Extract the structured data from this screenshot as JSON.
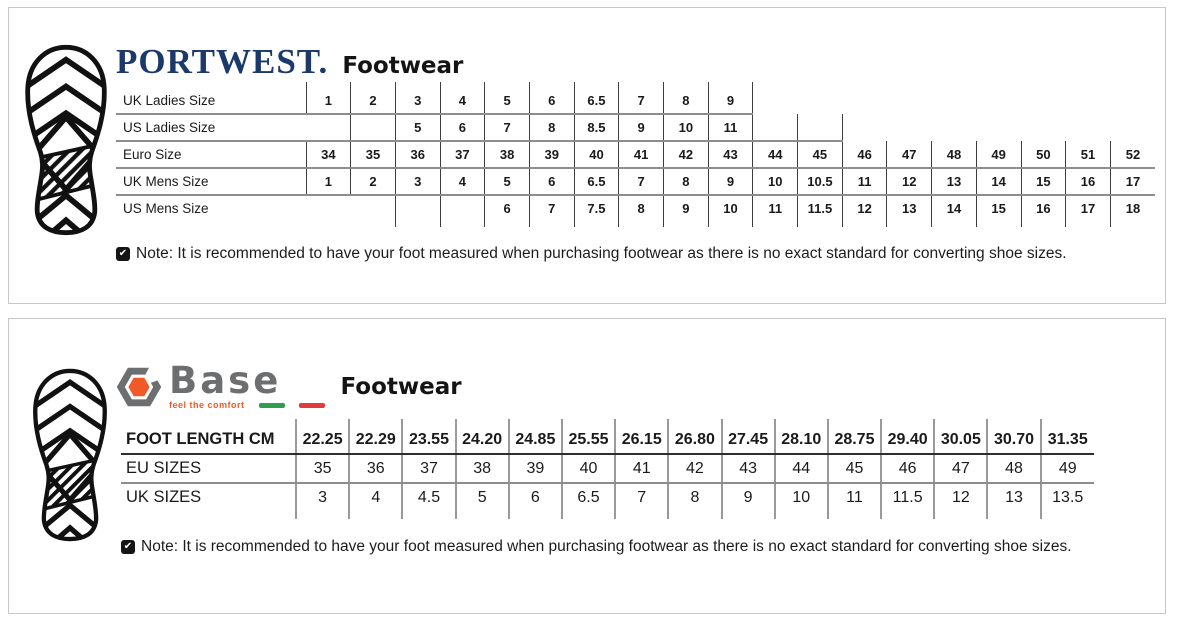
{
  "note": "Note: It is recommended to have your foot measured when purchasing footwear as there is no exact standard for converting shoe sizes.",
  "portwest": {
    "brand": "PORTWEST.",
    "title": "Footwear",
    "rows": [
      {
        "label": "UK Ladies Size",
        "values": [
          "1",
          "2",
          "3",
          "4",
          "5",
          "6",
          "6.5",
          "7",
          "8",
          "9",
          "",
          "",
          "",
          "",
          "",
          "",
          "",
          "",
          ""
        ]
      },
      {
        "label": "US Ladies Size",
        "values": [
          "",
          "",
          "5",
          "6",
          "7",
          "8",
          "8.5",
          "9",
          "10",
          "11",
          "",
          "",
          "",
          "",
          "",
          "",
          "",
          "",
          ""
        ]
      },
      {
        "label": "Euro Size",
        "values": [
          "34",
          "35",
          "36",
          "37",
          "38",
          "39",
          "40",
          "41",
          "42",
          "43",
          "44",
          "45",
          "46",
          "47",
          "48",
          "49",
          "50",
          "51",
          "52"
        ]
      },
      {
        "label": "UK Mens Size",
        "values": [
          "1",
          "2",
          "3",
          "4",
          "5",
          "6",
          "6.5",
          "7",
          "8",
          "9",
          "10",
          "10.5",
          "11",
          "12",
          "13",
          "14",
          "15",
          "16",
          "17"
        ]
      },
      {
        "label": "US Mens Size",
        "values": [
          "",
          "",
          "",
          "",
          "6",
          "7",
          "7.5",
          "8",
          "9",
          "10",
          "11",
          "11.5",
          "12",
          "13",
          "14",
          "15",
          "16",
          "17",
          "18"
        ]
      }
    ]
  },
  "base": {
    "brand": "Base",
    "tagline": "feel the comfort",
    "title": "Footwear",
    "rows": [
      {
        "label": "FOOT LENGTH CM",
        "values": [
          "22.25",
          "22.29",
          "23.55",
          "24.20",
          "24.85",
          "25.55",
          "26.15",
          "26.80",
          "27.45",
          "28.10",
          "28.75",
          "29.40",
          "30.05",
          "30.70",
          "31.35"
        ]
      },
      {
        "label": "EU SIZES",
        "values": [
          "35",
          "36",
          "37",
          "38",
          "39",
          "40",
          "41",
          "42",
          "43",
          "44",
          "45",
          "46",
          "47",
          "48",
          "49"
        ]
      },
      {
        "label": "UK SIZES",
        "values": [
          "3",
          "4",
          "4.5",
          "5",
          "6",
          "6.5",
          "7",
          "8",
          "9",
          "10",
          "11",
          "11.5",
          "12",
          "13",
          "13.5"
        ]
      }
    ]
  },
  "colors": {
    "portwest_navy": "#1b3a6b",
    "base_gray": "#6d6e70",
    "base_orange": "#f05a28",
    "flag_green": "#2f9e4e",
    "flag_red": "#e23b3e"
  },
  "icons": {
    "note_check": "✔"
  }
}
